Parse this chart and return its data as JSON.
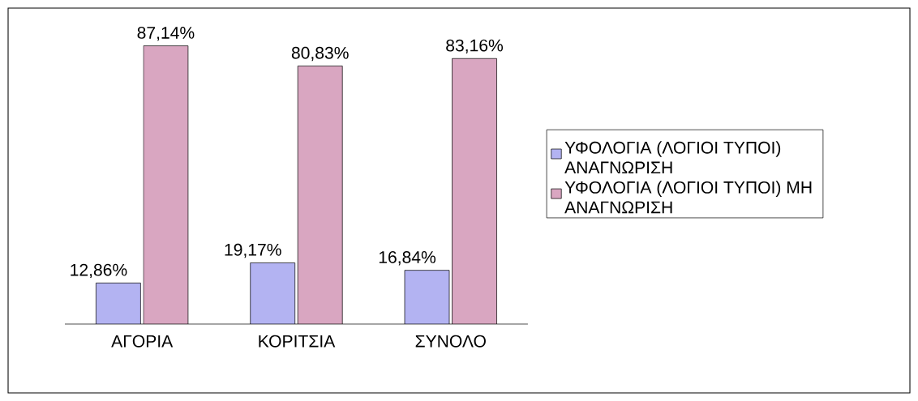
{
  "chart_data": {
    "type": "bar",
    "categories": [
      "ΑΓΟΡΙΑ",
      "ΚΟΡΙΤΣΙΑ",
      "ΣΥΝΟΛΟ"
    ],
    "legend": "right",
    "series": [
      {
        "name": "ΥΦΟΛΟΓΙΑ (ΛΟΓΙΟΙ ΤΥΠΟΙ) ΑΝΑΓΝΩΡΙΣΗ",
        "color": "#b3b3f2",
        "values": [
          12.86,
          19.17,
          16.84
        ],
        "value_labels": [
          "12,86%",
          "19,17%",
          "16,84%"
        ]
      },
      {
        "name": "ΥΦΟΛΟΓΙΑ (ΛΟΓΙΟΙ ΤΥΠΟΙ) ΜΗ ΑΝΑΓΝΩΡΙΣΗ",
        "color": "#d9a6c1",
        "values": [
          87.14,
          80.83,
          83.16
        ],
        "value_labels": [
          "87,14%",
          "80,83%",
          "83,16%"
        ]
      }
    ]
  }
}
